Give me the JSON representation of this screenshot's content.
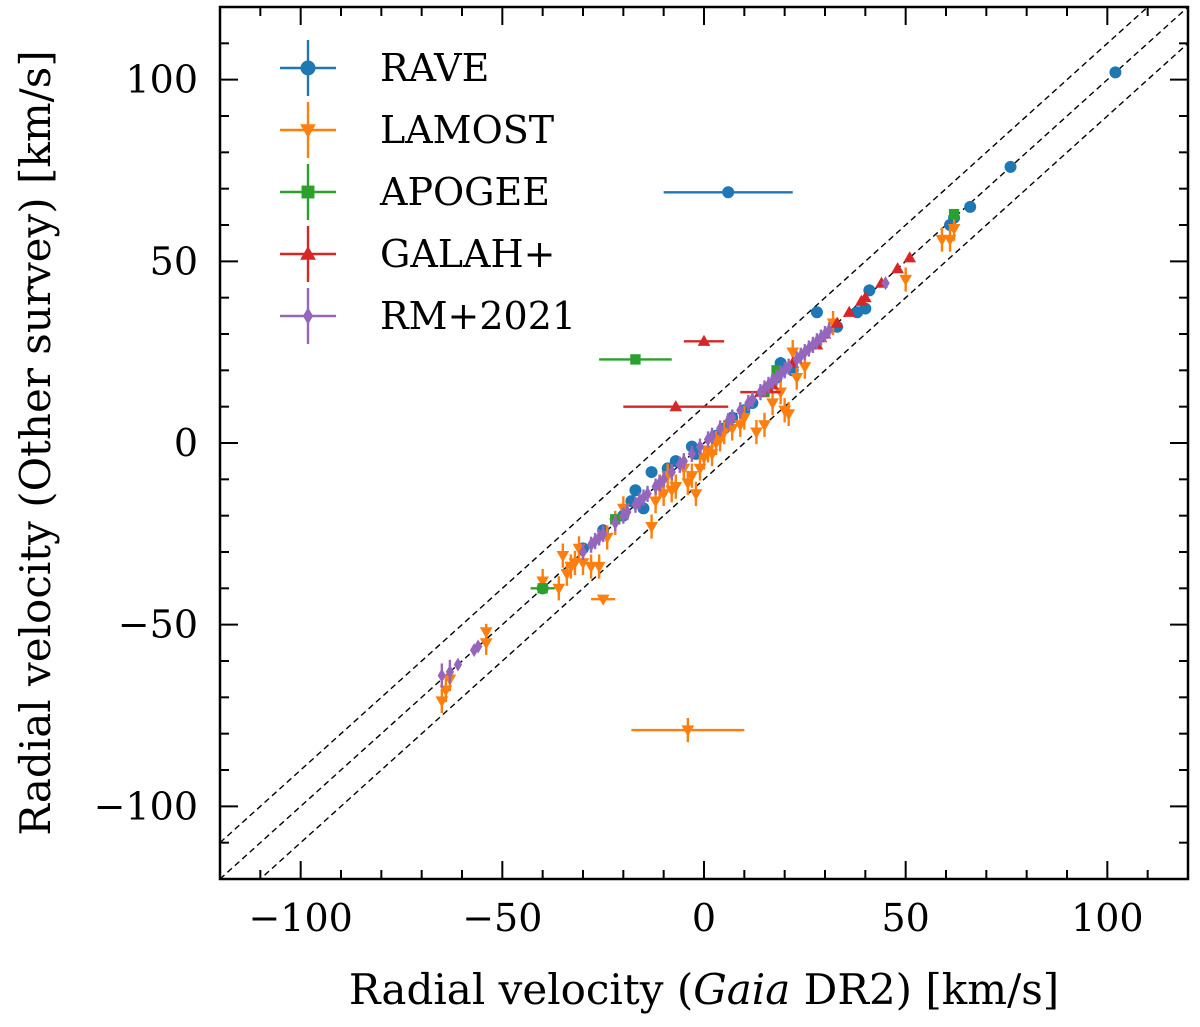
{
  "chart_data": {
    "type": "scatter",
    "title": "",
    "xlabel_pre": "Radial velocity (",
    "xlabel_italic": "Gaia",
    "xlabel_post": " DR2) [km/s]",
    "ylabel": "Radial velocity (Other survey) [km/s]",
    "xlim": [
      -120,
      120
    ],
    "ylim": [
      -120,
      120
    ],
    "xticks": [
      -100,
      -50,
      0,
      50,
      100
    ],
    "yticks": [
      -100,
      -50,
      0,
      50,
      100
    ],
    "xtick_labels": [
      "−100",
      "−50",
      "0",
      "50",
      "100"
    ],
    "ytick_labels": [
      "−100",
      "−50",
      "0",
      "50",
      "100"
    ],
    "grid": false,
    "legend_position": "top-left",
    "reference_lines": [
      {
        "style": "dashed",
        "offset": 0
      },
      {
        "style": "dashed",
        "offset": 10
      },
      {
        "style": "dashed",
        "offset": -10
      }
    ],
    "series": [
      {
        "name": "RAVE",
        "color": "#1f77b4",
        "marker": "circle",
        "points": [
          [
            102,
            102,
            0,
            0
          ],
          [
            76,
            76,
            0,
            0
          ],
          [
            66,
            65,
            0,
            0
          ],
          [
            62,
            62,
            0,
            0
          ],
          [
            61,
            60,
            0,
            0
          ],
          [
            6,
            69,
            16,
            0
          ],
          [
            28,
            36,
            0,
            0
          ],
          [
            40,
            37,
            0,
            0
          ],
          [
            41,
            42,
            0,
            0
          ],
          [
            38,
            36,
            0,
            0
          ],
          [
            33,
            32,
            0,
            0
          ],
          [
            22,
            20,
            0,
            0
          ],
          [
            19,
            22,
            0,
            1.5
          ],
          [
            18,
            18,
            0,
            0
          ],
          [
            12,
            11,
            0,
            0
          ],
          [
            10,
            9,
            0,
            0
          ],
          [
            7,
            7,
            0,
            0
          ],
          [
            5,
            4,
            0,
            0
          ],
          [
            3,
            2,
            0,
            0
          ],
          [
            -3,
            -1,
            0,
            0
          ],
          [
            -2,
            -3,
            0,
            0
          ],
          [
            -7,
            -5,
            0,
            0
          ],
          [
            -9,
            -7,
            0,
            0
          ],
          [
            -13,
            -8,
            0,
            0
          ],
          [
            -15,
            -18,
            0,
            0
          ],
          [
            -17,
            -13,
            0,
            0
          ],
          [
            -18,
            -16,
            0,
            0
          ],
          [
            -20,
            -20,
            0,
            0
          ],
          [
            -25,
            -24,
            0,
            0
          ],
          [
            -30,
            -29,
            0,
            0
          ],
          [
            -40,
            -40,
            0,
            0
          ]
        ]
      },
      {
        "name": "LAMOST",
        "color": "#ff7f0e",
        "marker": "triangle-down",
        "points": [
          [
            -65,
            -71,
            0,
            3
          ],
          [
            -64,
            -68,
            0,
            3
          ],
          [
            -63,
            -65,
            0,
            3
          ],
          [
            -54,
            -55,
            0,
            3
          ],
          [
            -54,
            -52,
            0,
            2
          ],
          [
            -40,
            -38,
            0,
            3
          ],
          [
            -35,
            -31,
            0,
            3
          ],
          [
            -36,
            -40,
            0,
            3
          ],
          [
            -34,
            -36,
            0,
            3
          ],
          [
            -33,
            -34,
            0,
            3
          ],
          [
            -32,
            -33,
            0,
            3
          ],
          [
            -31,
            -29,
            0,
            3
          ],
          [
            -30,
            -33,
            0,
            3
          ],
          [
            -28,
            -34,
            0,
            3
          ],
          [
            -26,
            -34,
            0,
            3
          ],
          [
            -25,
            -43,
            3,
            0
          ],
          [
            -24,
            -26,
            0,
            3
          ],
          [
            -22,
            -22,
            0,
            3
          ],
          [
            -20,
            -18,
            0,
            3
          ],
          [
            -13,
            -23,
            0,
            3
          ],
          [
            -12,
            -16,
            0,
            3
          ],
          [
            -11,
            -12,
            0,
            3
          ],
          [
            -10,
            -14,
            0,
            3
          ],
          [
            -9,
            -9,
            0,
            3
          ],
          [
            -8,
            -13,
            0,
            3
          ],
          [
            -7,
            -12,
            0,
            3
          ],
          [
            -5,
            -7,
            0,
            3
          ],
          [
            -4,
            -11,
            0,
            3
          ],
          [
            -3,
            -9,
            0,
            3
          ],
          [
            -2,
            -14,
            0,
            3
          ],
          [
            -1,
            -7,
            0,
            3
          ],
          [
            0,
            -4,
            0,
            3
          ],
          [
            1,
            -2,
            0,
            3
          ],
          [
            2,
            -3,
            0,
            3
          ],
          [
            3,
            0,
            0,
            3
          ],
          [
            4,
            1,
            0,
            3
          ],
          [
            5,
            3,
            0,
            3
          ],
          [
            7,
            4,
            0,
            3
          ],
          [
            9,
            5,
            0,
            3
          ],
          [
            10,
            7,
            0,
            3
          ],
          [
            13,
            3,
            0,
            3
          ],
          [
            15,
            5,
            0,
            3
          ],
          [
            17,
            11,
            0,
            3
          ],
          [
            19,
            14,
            0,
            3
          ],
          [
            20,
            9,
            0,
            3
          ],
          [
            21,
            8,
            0,
            3
          ],
          [
            22,
            25,
            0,
            3
          ],
          [
            23,
            18,
            0,
            3
          ],
          [
            25,
            21,
            0,
            3
          ],
          [
            32,
            33,
            0,
            3
          ],
          [
            50,
            45,
            0,
            3
          ],
          [
            59,
            56,
            0,
            3
          ],
          [
            61,
            56,
            0,
            3
          ],
          [
            62,
            59,
            0,
            3
          ],
          [
            -4,
            -79,
            14,
            3
          ]
        ]
      },
      {
        "name": "APOGEE",
        "color": "#2ca02c",
        "marker": "square",
        "points": [
          [
            62,
            63,
            0,
            0
          ],
          [
            -17,
            23,
            9,
            0
          ],
          [
            -40,
            -40,
            3,
            0
          ],
          [
            18,
            20,
            0,
            0
          ],
          [
            -22,
            -21,
            0,
            0
          ],
          [
            15,
            14,
            0,
            0
          ]
        ]
      },
      {
        "name": "GALAH+",
        "color": "#d62728",
        "marker": "triangle-up",
        "points": [
          [
            51,
            51,
            0,
            0
          ],
          [
            48,
            48,
            0,
            0
          ],
          [
            44,
            44,
            0,
            0
          ],
          [
            40,
            40,
            0,
            0
          ],
          [
            39,
            39,
            0,
            0
          ],
          [
            36,
            36,
            0,
            0
          ],
          [
            33,
            33,
            0,
            0
          ],
          [
            30,
            30,
            0,
            0
          ],
          [
            29,
            29,
            0,
            0
          ],
          [
            28,
            27,
            0,
            0
          ],
          [
            22,
            22,
            0,
            0
          ],
          [
            17,
            16,
            0,
            0
          ],
          [
            16,
            15,
            0,
            0
          ],
          [
            14,
            14,
            5,
            0
          ],
          [
            0,
            28,
            5,
            0
          ],
          [
            -7,
            10,
            13,
            0
          ]
        ]
      },
      {
        "name": "RM+2021",
        "color": "#9467bd",
        "marker": "diamond",
        "points": [
          [
            -65,
            -64,
            0,
            3
          ],
          [
            -63,
            -63,
            0,
            3
          ],
          [
            -61,
            -61,
            0,
            0
          ],
          [
            -57,
            -57,
            0,
            0
          ],
          [
            -56,
            -56,
            0,
            0
          ],
          [
            -30,
            -30,
            0,
            2
          ],
          [
            -28,
            -28,
            0,
            2
          ],
          [
            -27,
            -27,
            0,
            2
          ],
          [
            -26,
            -26,
            0,
            2
          ],
          [
            -25,
            -25,
            0,
            2
          ],
          [
            -22,
            -22,
            0,
            2
          ],
          [
            -20,
            -20,
            0,
            2
          ],
          [
            -19,
            -19,
            0,
            2
          ],
          [
            -17,
            -17,
            0,
            2
          ],
          [
            -16,
            -16,
            0,
            2
          ],
          [
            -15,
            -15,
            0,
            2
          ],
          [
            -14,
            -14,
            0,
            2
          ],
          [
            -12,
            -12,
            0,
            2
          ],
          [
            -11,
            -11,
            0,
            2
          ],
          [
            -10,
            -10,
            0,
            2
          ],
          [
            -8,
            -8,
            0,
            2
          ],
          [
            -6,
            -6,
            0,
            2
          ],
          [
            -5,
            -5,
            0,
            2
          ],
          [
            -3,
            -3,
            0,
            2
          ],
          [
            -1,
            -1,
            0,
            2
          ],
          [
            1,
            1,
            0,
            2
          ],
          [
            2,
            2,
            0,
            2
          ],
          [
            4,
            4,
            0,
            2
          ],
          [
            6,
            6,
            0,
            2
          ],
          [
            7,
            7,
            0,
            2
          ],
          [
            9,
            9,
            0,
            2
          ],
          [
            11,
            11,
            0,
            2
          ],
          [
            12,
            12,
            0,
            2
          ],
          [
            14,
            14,
            0,
            2
          ],
          [
            15,
            15,
            0,
            2
          ],
          [
            16,
            16,
            0,
            2
          ],
          [
            17,
            17,
            0,
            2
          ],
          [
            18,
            18,
            0,
            2
          ],
          [
            19,
            19,
            0,
            2
          ],
          [
            20,
            20,
            0,
            2
          ],
          [
            21,
            21,
            0,
            2
          ],
          [
            23,
            23,
            0,
            2
          ],
          [
            24,
            24,
            0,
            2
          ],
          [
            25,
            25,
            0,
            2
          ],
          [
            26,
            26,
            0,
            2
          ],
          [
            27,
            27,
            0,
            2
          ],
          [
            28,
            28,
            0,
            2
          ],
          [
            29,
            29,
            0,
            2
          ],
          [
            30,
            30,
            0,
            2
          ],
          [
            31,
            31,
            0,
            2
          ],
          [
            45,
            44,
            0,
            0
          ]
        ]
      }
    ]
  }
}
